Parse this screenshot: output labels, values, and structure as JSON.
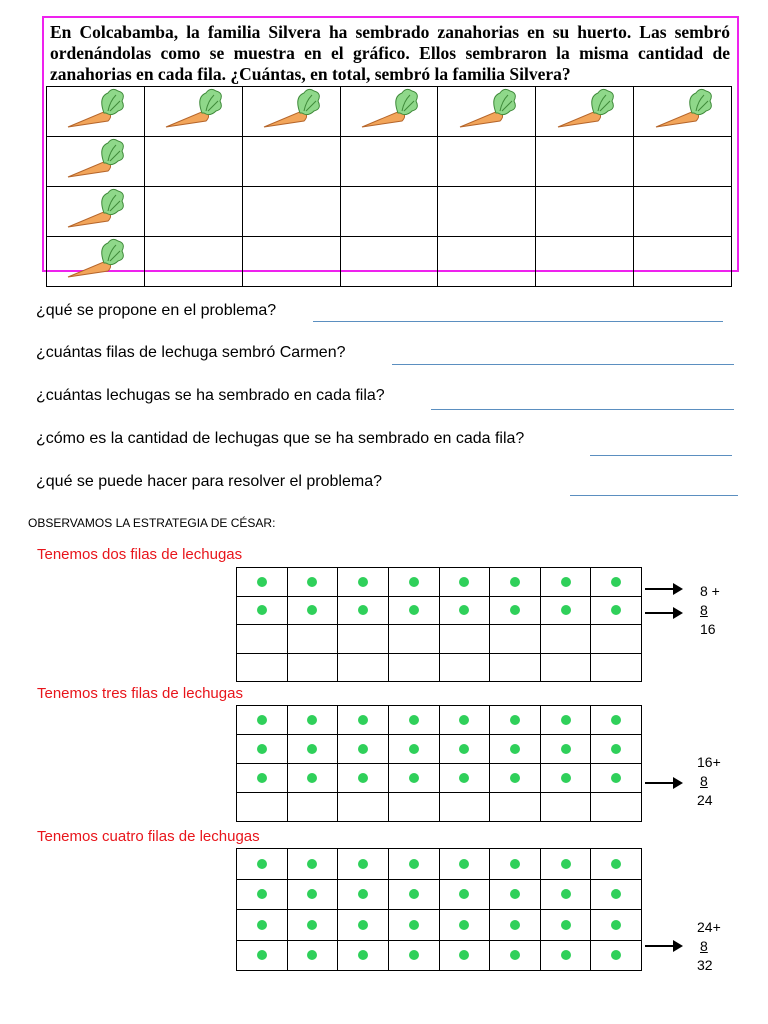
{
  "problem": {
    "lines": [
      "En Colcabamba, la familia Silvera ha sembrado zanahorias en su huerto. Las sembró",
      "ordenándolas como se muestra en el gráfico. Ellos sembraron la misma cantidad de",
      "zanahorias en cada fila. ¿Cuántas, en total, sembró la familia Silvera?"
    ],
    "carrot_table": {
      "rows": 4,
      "cols": 7,
      "icon": "carrot-icon",
      "carrots_per_row": [
        7,
        1,
        1,
        1
      ]
    },
    "border_color": "#ee22ee"
  },
  "questions": [
    "¿qué se propone en el problema?",
    "¿cuántas filas de lechuga sembró Carmen?",
    "¿cuántas lechugas se ha sembrado en cada fila?",
    "¿cómo es la cantidad de lechugas que se ha sembrado en cada fila?",
    "¿qué se puede hacer para resolver el problema?"
  ],
  "strategy_title": "OBSERVAMOS LA ESTRATEGIA DE CÉSAR:",
  "strategies": [
    {
      "label": "Tenemos dos filas de lechugas",
      "rows": 4,
      "cols": 8,
      "filled_rows": 2,
      "sum": {
        "a": "8 +",
        "b": "8",
        "total": "16"
      }
    },
    {
      "label": "Tenemos tres filas de lechugas",
      "rows": 4,
      "cols": 8,
      "filled_rows": 3,
      "sum": {
        "a": "16+",
        "b": "8",
        "total": "24"
      }
    },
    {
      "label": "Tenemos cuatro filas de lechugas",
      "rows": 4,
      "cols": 8,
      "filled_rows": 4,
      "sum": {
        "a": "24+",
        "b": "8",
        "total": "32"
      }
    }
  ],
  "colors": {
    "label": "#e8151b",
    "dot": "#2fd05a",
    "answer_line": "#5b8fc0"
  }
}
